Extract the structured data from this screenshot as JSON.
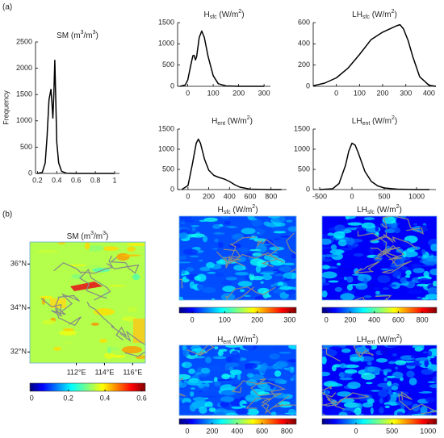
{
  "panel_labels": [
    "(a)",
    "(b)"
  ],
  "chart_data": [
    {
      "type": "line",
      "title": [
        {
          "text": "SM (m"
        },
        {
          "text": "3",
          "sup": true
        },
        {
          "text": "/m"
        },
        {
          "text": "3",
          "sup": true
        },
        {
          "text": ")"
        }
      ],
      "ylabel": "Frequency",
      "color": "#000000",
      "x": [
        0.2,
        0.25,
        0.28,
        0.3,
        0.32,
        0.34,
        0.35,
        0.36,
        0.37,
        0.38,
        0.39,
        0.4,
        0.42,
        0.45,
        0.5,
        0.6,
        0.8,
        1.0
      ],
      "values": [
        0,
        20,
        200,
        700,
        1400,
        1600,
        1350,
        1050,
        1500,
        2150,
        1400,
        600,
        200,
        40,
        5,
        0,
        0,
        0
      ],
      "xlim": [
        0.18,
        1.05
      ],
      "xticks": [
        0.2,
        0.4,
        0.6,
        0.8,
        1
      ],
      "ylim": [
        0,
        2500
      ],
      "yticks": [
        0,
        500,
        1000,
        1500,
        2000,
        2500
      ]
    },
    {
      "type": "line",
      "title": [
        {
          "text": "H"
        },
        {
          "text": "sfc",
          "sub": true
        },
        {
          "text": " (W/m"
        },
        {
          "text": "2",
          "sup": true
        },
        {
          "text": ")"
        }
      ],
      "color": "#000000",
      "x": [
        -30,
        -10,
        0,
        10,
        20,
        25,
        30,
        35,
        45,
        55,
        65,
        80,
        100,
        120,
        150,
        200,
        300
      ],
      "values": [
        0,
        30,
        150,
        450,
        720,
        730,
        620,
        700,
        1150,
        1300,
        1150,
        700,
        250,
        60,
        10,
        0,
        0
      ],
      "xlim": [
        -40,
        325
      ],
      "xticks": [
        0,
        100,
        200,
        300
      ],
      "ylim": [
        0,
        1500
      ],
      "yticks": [
        0,
        500,
        1000,
        1500
      ]
    },
    {
      "type": "line",
      "title": [
        {
          "text": "LH"
        },
        {
          "text": "sfc",
          "sub": true
        },
        {
          "text": " (W/m"
        },
        {
          "text": "2",
          "sup": true
        },
        {
          "text": ")"
        }
      ],
      "color": "#000000",
      "x": [
        -100,
        -50,
        0,
        50,
        100,
        150,
        200,
        230,
        260,
        275,
        290,
        310,
        330,
        360,
        400,
        430
      ],
      "values": [
        5,
        30,
        80,
        170,
        300,
        440,
        510,
        540,
        570,
        580,
        540,
        430,
        280,
        90,
        10,
        0
      ],
      "xlim": [
        -100,
        430
      ],
      "xticks": [
        0,
        100,
        200,
        300,
        400
      ],
      "ylim": [
        0,
        600
      ],
      "yticks": [
        0,
        200,
        400,
        600
      ]
    },
    {
      "type": "line",
      "title": [
        {
          "text": "H"
        },
        {
          "text": "ent",
          "sub": true
        },
        {
          "text": " (W/m"
        },
        {
          "text": "2",
          "sup": true
        },
        {
          "text": ")"
        }
      ],
      "color": "#000000",
      "x": [
        -60,
        0,
        40,
        80,
        100,
        120,
        160,
        200,
        250,
        300,
        350,
        400,
        450,
        500,
        600,
        800,
        900
      ],
      "values": [
        0,
        100,
        600,
        1150,
        1250,
        1150,
        750,
        480,
        350,
        300,
        260,
        200,
        120,
        60,
        10,
        0,
        0
      ],
      "xlim": [
        -100,
        950
      ],
      "xticks": [
        0,
        200,
        400,
        600,
        800
      ],
      "ylim": [
        0,
        1500
      ],
      "yticks": [
        0,
        500,
        1000,
        1500
      ]
    },
    {
      "type": "line",
      "title": [
        {
          "text": "LH"
        },
        {
          "text": "ent",
          "sub": true
        },
        {
          "text": " (W/m"
        },
        {
          "text": "2",
          "sup": true
        },
        {
          "text": ")"
        }
      ],
      "color": "#000000",
      "x": [
        -500,
        -300,
        -200,
        -100,
        -50,
        0,
        50,
        100,
        200,
        300,
        400,
        500,
        700,
        1000,
        1200
      ],
      "values": [
        0,
        20,
        150,
        600,
        950,
        1150,
        1100,
        900,
        450,
        200,
        90,
        40,
        10,
        0,
        0
      ],
      "xlim": [
        -600,
        1300
      ],
      "xticks": [
        -500,
        0,
        500,
        1000
      ],
      "ylim": [
        0,
        1500
      ],
      "yticks": [
        0,
        500,
        1000,
        1500
      ]
    },
    {
      "type": "map",
      "title": [
        {
          "text": "SM (m"
        },
        {
          "text": "3",
          "sup": true
        },
        {
          "text": "/m"
        },
        {
          "text": "3",
          "sup": true
        },
        {
          "text": ")"
        }
      ],
      "colormap": "jet",
      "clim": [
        -0.01,
        0.62
      ],
      "cticks": [
        0,
        0.2,
        0.4,
        0.6
      ],
      "xlim": [
        108.7,
        116.9
      ],
      "xticks": [
        {
          "value": 112,
          "label": "112°E"
        },
        {
          "value": 114,
          "label": "114°E"
        },
        {
          "value": 116,
          "label": "116°E"
        }
      ],
      "ylim": [
        31.5,
        37.0
      ],
      "yticks": [
        {
          "value": 32,
          "label": "32°N"
        },
        {
          "value": 34,
          "label": "34°N"
        },
        {
          "value": 36,
          "label": "36°N"
        }
      ]
    },
    {
      "type": "map",
      "title": [
        {
          "text": "H"
        },
        {
          "text": "sfc",
          "sub": true
        },
        {
          "text": " (W/m"
        },
        {
          "text": "2",
          "sup": true
        },
        {
          "text": ")"
        }
      ],
      "colormap": "jet",
      "clim": [
        -40,
        320
      ],
      "cticks": [
        0,
        100,
        200,
        300
      ]
    },
    {
      "type": "map",
      "title": [
        {
          "text": "LH"
        },
        {
          "text": "sfc",
          "sub": true
        },
        {
          "text": " (W/m"
        },
        {
          "text": "2",
          "sup": true
        },
        {
          "text": ")"
        }
      ],
      "colormap": "jet",
      "clim": [
        -35,
        920
      ],
      "cticks": [
        0,
        200,
        400,
        600,
        800
      ]
    },
    {
      "type": "map",
      "title": [
        {
          "text": "H"
        },
        {
          "text": "ent",
          "sub": true
        },
        {
          "text": " (W/m"
        },
        {
          "text": "2",
          "sup": true
        },
        {
          "text": ")"
        }
      ],
      "colormap": "jet",
      "clim": [
        -65,
        875
      ],
      "cticks": [
        0,
        200,
        400,
        600,
        800
      ]
    },
    {
      "type": "map",
      "title": [
        {
          "text": "LH"
        },
        {
          "text": "ent",
          "sub": true
        },
        {
          "text": " (W/m"
        },
        {
          "text": "2",
          "sup": true
        },
        {
          "text": ")"
        }
      ],
      "colormap": "jet",
      "clim": [
        -470,
        1120
      ],
      "cticks": [
        0,
        500,
        1000
      ]
    }
  ]
}
